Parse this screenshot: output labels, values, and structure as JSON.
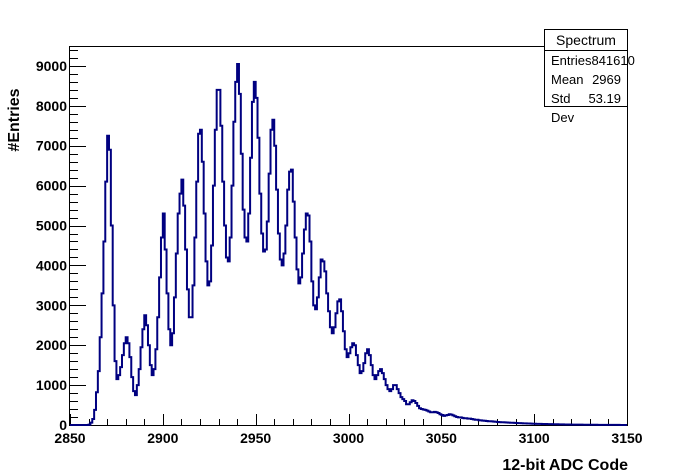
{
  "chart_data": {
    "type": "histogram-step",
    "xlabel": "12-bit ADC Code",
    "ylabel": "#Entries",
    "xlim": [
      2850,
      3150
    ],
    "ylim": [
      0,
      9500
    ],
    "x_ticks": [
      2850,
      2900,
      2950,
      3000,
      3050,
      3100,
      3150
    ],
    "y_ticks": [
      0,
      1000,
      2000,
      3000,
      4000,
      5000,
      6000,
      7000,
      8000,
      9000
    ],
    "line_color": "#000080",
    "bin_width": 1,
    "bin_start": 2850,
    "values": [
      0,
      0,
      0,
      0,
      0,
      0,
      0,
      0,
      0,
      0,
      10,
      60,
      150,
      380,
      820,
      1350,
      2200,
      3300,
      4600,
      6100,
      7250,
      6900,
      5000,
      3000,
      1600,
      1150,
      1250,
      1450,
      1750,
      2050,
      2200,
      2050,
      1700,
      1200,
      850,
      750,
      1000,
      1400,
      1950,
      2400,
      2750,
      2500,
      2000,
      1500,
      1250,
      1400,
      1900,
      2700,
      3700,
      4700,
      5300,
      4400,
      3300,
      2400,
      2000,
      2300,
      3200,
      4300,
      5300,
      5800,
      6150,
      5500,
      4400,
      3400,
      2700,
      2700,
      3500,
      4700,
      6100,
      7300,
      7400,
      6600,
      5300,
      4100,
      3500,
      3600,
      4500,
      6000,
      7400,
      8400,
      8400,
      7500,
      6100,
      5000,
      4200,
      4100,
      4700,
      6000,
      7600,
      8600,
      9050,
      8300,
      6800,
      5400,
      4700,
      4600,
      5300,
      6700,
      8100,
      8600,
      8200,
      7200,
      5800,
      4800,
      4350,
      4400,
      5100,
      6300,
      7400,
      7650,
      7000,
      5900,
      4800,
      4150,
      4000,
      4300,
      5000,
      5900,
      6350,
      6400,
      5600,
      4700,
      3900,
      3550,
      3700,
      4300,
      4900,
      5300,
      5250,
      4600,
      3600,
      3000,
      2900,
      3200,
      3700,
      4150,
      4100,
      3850,
      3300,
      2850,
      2450,
      2300,
      2450,
      2800,
      3100,
      3150,
      2850,
      2350,
      1900,
      1700,
      1800,
      1950,
      2050,
      2000,
      1750,
      1500,
      1300,
      1350,
      1550,
      1800,
      1900,
      1750,
      1500,
      1250,
      1150,
      1250,
      1350,
      1400,
      1300,
      1150,
      1000,
      900,
      850,
      900,
      1000,
      1000,
      900,
      800,
      700,
      650,
      600,
      520,
      520,
      570,
      620,
      600,
      550,
      480,
      420,
      400,
      390,
      380,
      360,
      340,
      320,
      320,
      330,
      320,
      300,
      270,
      250,
      230,
      240,
      250,
      270,
      260,
      240,
      220,
      200,
      190,
      190,
      180,
      170,
      170,
      160,
      160,
      150,
      140,
      130,
      130,
      120,
      115,
      110,
      105,
      100,
      95,
      95,
      90,
      85,
      80,
      75,
      72,
      70,
      68,
      65,
      62,
      60,
      58,
      55,
      52,
      50,
      48,
      46,
      44,
      42,
      40,
      38,
      36,
      34,
      32,
      30,
      29,
      28,
      27,
      26,
      25,
      24,
      23,
      22,
      21,
      20,
      19,
      18,
      17,
      16,
      15,
      14,
      13,
      12,
      11,
      10,
      10,
      9,
      9,
      8,
      8,
      7,
      7,
      6,
      6,
      6,
      5,
      5,
      5,
      4,
      4,
      4,
      3,
      3,
      3,
      3,
      2,
      2,
      2,
      2,
      2,
      1,
      1,
      1,
      1
    ]
  },
  "stats_box": {
    "title": "Spectrum",
    "entries_label": "Entries",
    "entries_value": "841610",
    "mean_label": "Mean",
    "mean_value": "2969",
    "stddev_label": "Std Dev",
    "stddev_value": "53.19"
  }
}
